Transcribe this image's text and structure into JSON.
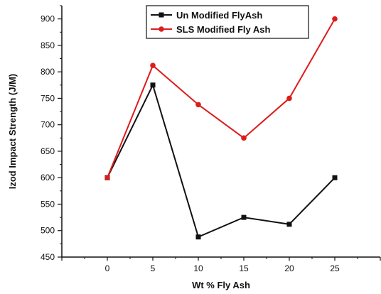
{
  "chart_data": {
    "type": "line",
    "title": "",
    "xlabel": "Wt % Fly Ash",
    "ylabel": "Izod Impact Strength (J/M)",
    "x": [
      0,
      5,
      10,
      15,
      20,
      25
    ],
    "xticks": [
      "0",
      "5",
      "10",
      "15",
      "20",
      "25"
    ],
    "xlim": [
      -5,
      30
    ],
    "ylim": [
      450,
      925
    ],
    "yticks": [
      "450",
      "500",
      "550",
      "600",
      "650",
      "700",
      "750",
      "800",
      "850",
      "900"
    ],
    "grid": false,
    "legend_position": "top-right",
    "series": [
      {
        "name": "Un Modified FlyAsh",
        "color": "#111111",
        "marker": "square",
        "values": [
          600,
          775,
          488,
          525,
          512,
          600
        ]
      },
      {
        "name": "SLS Modified Fly Ash",
        "color": "#dd1c1c",
        "marker": "circle",
        "values": [
          600,
          812,
          738,
          675,
          750,
          900
        ]
      }
    ]
  }
}
